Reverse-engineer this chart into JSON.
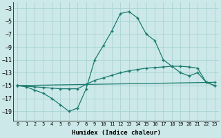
{
  "xlabel": "Humidex (Indice chaleur)",
  "background_color": "#cce8e8",
  "grid_color": "#aad4d4",
  "line_color": "#1a7a6e",
  "x_ticks": [
    0,
    1,
    2,
    3,
    4,
    5,
    6,
    7,
    8,
    9,
    10,
    11,
    12,
    13,
    14,
    15,
    16,
    17,
    18,
    19,
    20,
    21,
    22,
    23
  ],
  "y_ticks": [
    -19,
    -17,
    -15,
    -13,
    -11,
    -9,
    -7,
    -5,
    -3
  ],
  "ylim": [
    -20.5,
    -2.0
  ],
  "xlim": [
    -0.5,
    23.5
  ],
  "line1_x": [
    0,
    1,
    2,
    3,
    4,
    5,
    6,
    7,
    8,
    9,
    10,
    11,
    12,
    13,
    14,
    15,
    16,
    17,
    18,
    19,
    20,
    21,
    22,
    23
  ],
  "line1_y": [
    -15.0,
    -15.2,
    -15.7,
    -16.2,
    -17.0,
    -18.0,
    -19.0,
    -18.5,
    -15.5,
    -11.0,
    -8.8,
    -6.5,
    -3.8,
    -3.5,
    -4.5,
    -7.0,
    -8.0,
    -11.0,
    -12.0,
    -13.0,
    -13.5,
    -13.0,
    -14.5,
    -15.0
  ],
  "line2_x": [
    0,
    1,
    2,
    3,
    4,
    5,
    6,
    7,
    8,
    9,
    10,
    11,
    12,
    13,
    14,
    15,
    16,
    17,
    18,
    19,
    20,
    21,
    22,
    23
  ],
  "line2_y": [
    -15.0,
    -15.1,
    -15.2,
    -15.3,
    -15.4,
    -15.5,
    -15.5,
    -15.5,
    -14.8,
    -14.2,
    -13.8,
    -13.4,
    -13.0,
    -12.7,
    -12.5,
    -12.3,
    -12.2,
    -12.1,
    -12.0,
    -12.0,
    -12.1,
    -12.3,
    -14.5,
    -15.0
  ],
  "line3_x": [
    0,
    23
  ],
  "line3_y": [
    -15.0,
    -14.5
  ],
  "marker": "+",
  "markersize": 3,
  "linewidth": 0.9
}
